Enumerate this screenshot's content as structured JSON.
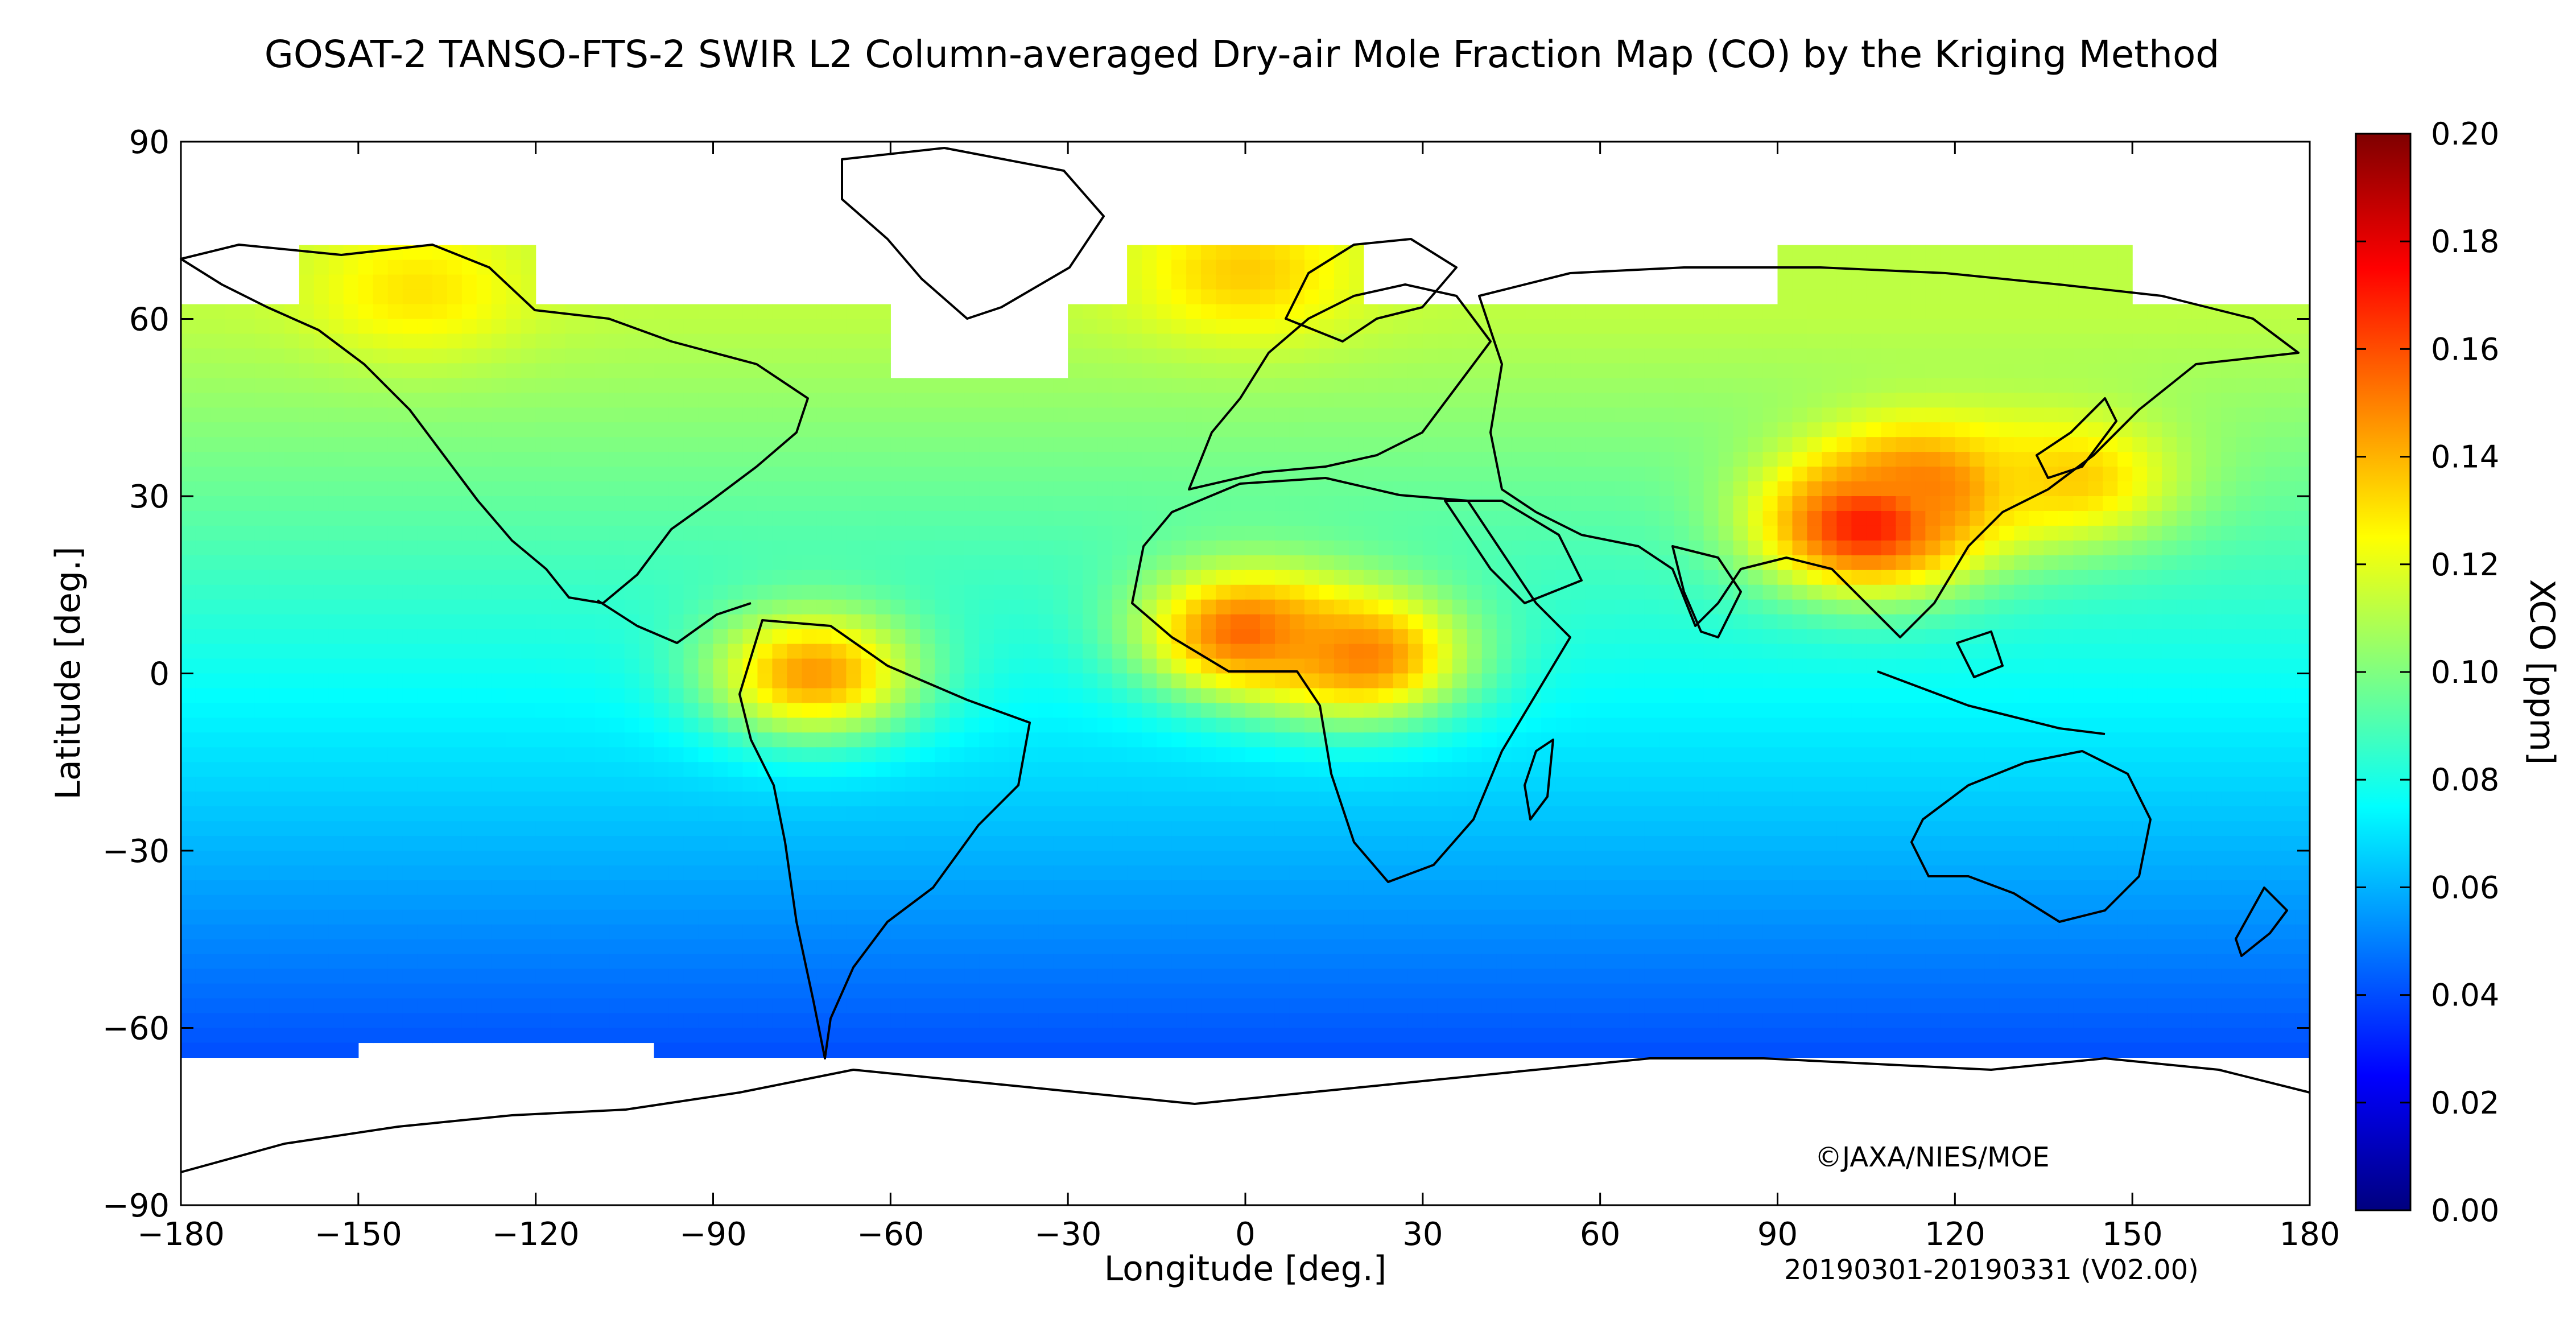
{
  "title": "GOSAT-2 TANSO-FTS-2 SWIR L2 Column-averaged Dry-air Mole Fraction Map (CO) by the Kriging Method",
  "axes": {
    "xlabel": "Longitude [deg.]",
    "ylabel": "Latitude [deg.]",
    "x_ticks": [
      "−180",
      "−150",
      "−120",
      "−90",
      "−60",
      "−30",
      "0",
      "30",
      "60",
      "90",
      "120",
      "150",
      "180"
    ],
    "y_ticks": [
      "90",
      "60",
      "30",
      "0",
      "−30",
      "−60",
      "−90"
    ]
  },
  "colorbar": {
    "label": "XCO [ppm]",
    "ticks": [
      "0.20",
      "0.18",
      "0.16",
      "0.14",
      "0.12",
      "0.10",
      "0.08",
      "0.06",
      "0.04",
      "0.02",
      "0.00"
    ],
    "colors": [
      "#00007f",
      "#0000ff",
      "#0080ff",
      "#00ffff",
      "#80ff80",
      "#ffff00",
      "#ff8000",
      "#ff0000",
      "#7f0000"
    ]
  },
  "copyright": "©JAXA/NIES/MOE",
  "period": "20190301-20190331 (V02.00)",
  "chart_data": {
    "type": "heatmap",
    "xlim": [
      -180,
      180
    ],
    "ylim": [
      -90,
      90
    ],
    "zlim": [
      0.0,
      0.2
    ],
    "grid": false,
    "legend_position": "right colorbar",
    "hotspots": [
      {
        "lon": 105,
        "lat": 25,
        "value": 0.17
      },
      {
        "lon": 115,
        "lat": 32,
        "value": 0.15
      },
      {
        "lon": 0,
        "lat": 7,
        "value": 0.155
      },
      {
        "lon": 20,
        "lat": 3,
        "value": 0.15
      },
      {
        "lon": -73,
        "lat": 0,
        "value": 0.145
      },
      {
        "lon": 0,
        "lat": 68,
        "value": 0.135
      },
      {
        "lon": -140,
        "lat": 65,
        "value": 0.13
      },
      {
        "lon": 140,
        "lat": 33,
        "value": 0.135
      }
    ]
  }
}
